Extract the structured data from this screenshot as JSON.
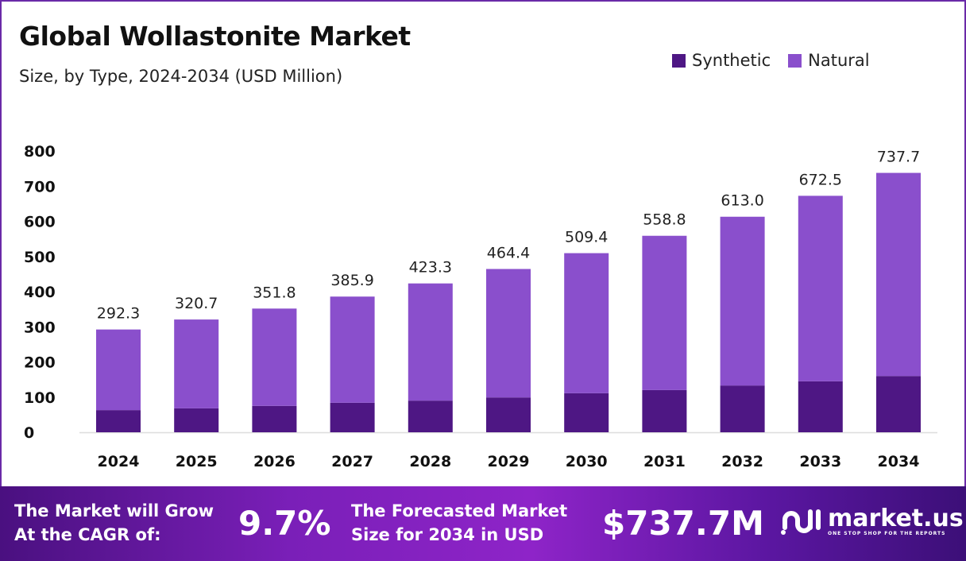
{
  "header": {
    "title": "Global Wollastonite Market",
    "subtitle": "Size, by Type, 2024-2034 (USD Million)"
  },
  "chart_data": {
    "type": "bar",
    "stacked": true,
    "title": "Global Wollastonite Market",
    "subtitle": "Size, by Type, 2024-2034 (USD Million)",
    "categories": [
      "2024",
      "2025",
      "2026",
      "2027",
      "2028",
      "2029",
      "2030",
      "2031",
      "2032",
      "2033",
      "2034"
    ],
    "series": [
      {
        "name": "Synthetic",
        "color": "#4e1784",
        "values": [
          63,
          68,
          75,
          84,
          90,
          99,
          111,
          120,
          133,
          145,
          160
        ]
      },
      {
        "name": "Natural",
        "color": "#8a4fcc",
        "values": [
          229.3,
          252.7,
          276.8,
          301.9,
          333.3,
          365.4,
          398.4,
          438.8,
          480.0,
          527.5,
          577.7
        ]
      }
    ],
    "totals": [
      "292.3",
      "320.7",
      "351.8",
      "385.9",
      "423.3",
      "464.4",
      "509.4",
      "558.8",
      "613.0",
      "672.5",
      "737.7"
    ],
    "yticks": [
      "0",
      "100",
      "200",
      "300",
      "400",
      "500",
      "600",
      "700",
      "800"
    ],
    "ylim": [
      0,
      800
    ],
    "grid": false,
    "legend": "top-right"
  },
  "banner": {
    "cagr_label": "The Market will Grow At the CAGR of:",
    "cagr_line1": "The Market will Grow",
    "cagr_line2": "At the CAGR of:",
    "cagr_value": "9.7%",
    "forecast_line1": "The Forecasted Market",
    "forecast_line2": "Size for 2034 in USD",
    "forecast_value": "$737.7M",
    "logo_name": "market.us",
    "logo_tagline": "ONE STOP SHOP FOR THE REPORTS"
  }
}
